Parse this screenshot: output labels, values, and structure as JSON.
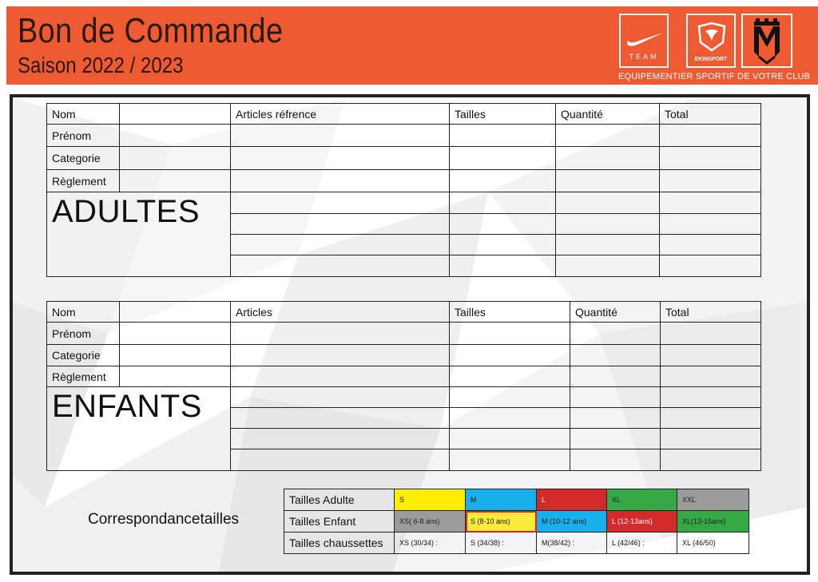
{
  "header": {
    "title": "Bon de Commande",
    "subtitle": "Saison 2022 / 2023",
    "logos": [
      {
        "name": "nike-logo",
        "text": "TEAM"
      },
      {
        "name": "ekinsport-logo",
        "text": "EKINSPORT"
      },
      {
        "name": "club-logo",
        "text": ""
      }
    ],
    "tagline": "EQUIPEMENTIER SPORTIF DE VOTRE CLUB",
    "brand_color": "#ee5a32"
  },
  "adultes": {
    "section_label": "ADULTES",
    "fields": [
      "Nom",
      "Prénom",
      "Categorie",
      "Règlement"
    ],
    "columns": [
      "Articles réfrence",
      "Tailles",
      "Quantité",
      "Total"
    ]
  },
  "enfants": {
    "section_label": "ENFANTS",
    "fields": [
      "Nom",
      "Prénom",
      "Categorie",
      "Règlement"
    ],
    "columns": [
      "Articles",
      "Tailles",
      "Quantité",
      "Total"
    ]
  },
  "correspondance": {
    "label": "Correspondancetailles",
    "rows": [
      {
        "label": "Tailles Adulte",
        "cells": [
          "S",
          "M",
          "L",
          "XL",
          "XXL"
        ]
      },
      {
        "label": "Tailles Enfant",
        "cells": [
          "XS( 6-8 ans)",
          "S (8-10 ans)",
          "M (10-12 ans)",
          "L (12-13ans)",
          "XL(13-15ans)"
        ]
      },
      {
        "label": "Tailles chaussettes",
        "cells": [
          "XS (30/34) :",
          "S (34/38) :",
          "M(38/42) :",
          "L (42/46) :",
          "XL (46/50)"
        ]
      }
    ],
    "colors": [
      "#ffee00",
      "#17b0ec",
      "#d42a2a",
      "#36a845",
      "#9b9b9b"
    ]
  }
}
